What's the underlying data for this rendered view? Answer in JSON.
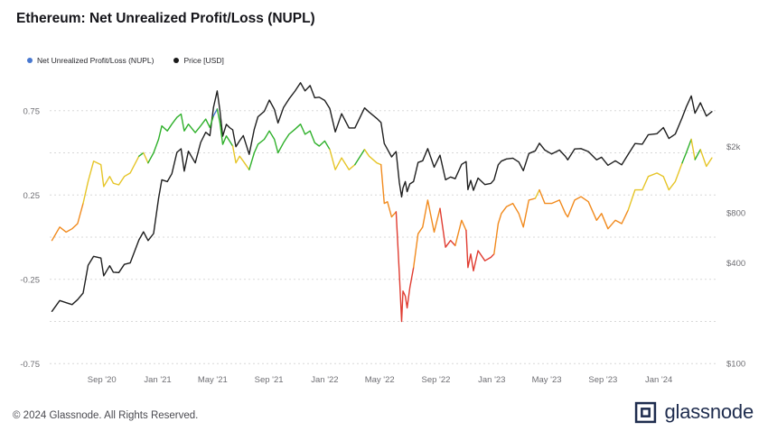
{
  "header": {
    "title": "Ethereum: Net Unrealized Profit/Loss (NUPL)"
  },
  "legend": {
    "items": [
      {
        "label": "Net Unrealized Profit/Loss (NUPL)",
        "color": "#4878d0"
      },
      {
        "label": "Price [USD]",
        "color": "#1a1a1a"
      }
    ]
  },
  "footer": {
    "copyright": "© 2024 Glassnode. All Rights Reserved.",
    "brand": "glassnode"
  },
  "chart_data": {
    "type": "line",
    "title": "Ethereum: Net Unrealized Profit/Loss (NUPL)",
    "time_range": [
      "2020-05-10",
      "2024-05-10"
    ],
    "x_ticks": [
      {
        "date": "2020-09-01",
        "label": "Sep '20"
      },
      {
        "date": "2021-01-01",
        "label": "Jan '21"
      },
      {
        "date": "2021-05-01",
        "label": "May '21"
      },
      {
        "date": "2021-09-01",
        "label": "Sep '21"
      },
      {
        "date": "2022-01-01",
        "label": "Jan '22"
      },
      {
        "date": "2022-05-01",
        "label": "May '22"
      },
      {
        "date": "2022-09-01",
        "label": "Sep '22"
      },
      {
        "date": "2023-01-01",
        "label": "Jan '23"
      },
      {
        "date": "2023-05-01",
        "label": "May '23"
      },
      {
        "date": "2023-09-01",
        "label": "Sep '23"
      },
      {
        "date": "2024-01-01",
        "label": "Jan '24"
      }
    ],
    "nupl_axis": {
      "side": "left",
      "range": [
        -0.8,
        0.95
      ],
      "gridlines": [
        0.75,
        0.5,
        0.25,
        0,
        -0.25,
        -0.5,
        -0.75
      ],
      "grid_style": "dashed",
      "ticks": [
        {
          "value": 0.75,
          "label": "0.75"
        },
        {
          "value": 0.25,
          "label": "0.25"
        },
        {
          "value": -0.25,
          "label": "-0.25"
        },
        {
          "value": -0.75,
          "label": "-0.75"
        }
      ]
    },
    "price_axis": {
      "side": "right",
      "scale": "log",
      "ticks": [
        {
          "value": 2000,
          "label": "$2k"
        },
        {
          "value": 800,
          "label": "$800"
        },
        {
          "value": 400,
          "label": "$400"
        },
        {
          "value": 100,
          "label": "$100"
        }
      ]
    },
    "bands": [
      {
        "max": 0,
        "color": "#e03c31"
      },
      {
        "max": 0.25,
        "color": "#f18a1d"
      },
      {
        "max": 0.5,
        "color": "#e6c528"
      },
      {
        "max": 0.75,
        "color": "#2eb02a"
      },
      {
        "max": 99,
        "color": "#4878d0"
      }
    ],
    "series": [
      {
        "name": "Net Unrealized Profit/Loss (NUPL)",
        "axis": "left",
        "coloring": "by-band"
      },
      {
        "name": "Price [USD]",
        "axis": "right",
        "color": "#1f1f1f"
      }
    ],
    "columns": [
      "date",
      "nupl",
      "price_usd"
    ],
    "points": [
      [
        "2020-05-15",
        -0.02,
        205
      ],
      [
        "2020-06-01",
        0.06,
        238
      ],
      [
        "2020-06-15",
        0.03,
        231
      ],
      [
        "2020-06-28",
        0.05,
        225
      ],
      [
        "2020-07-10",
        0.08,
        241
      ],
      [
        "2020-07-22",
        0.2,
        264
      ],
      [
        "2020-08-02",
        0.33,
        387
      ],
      [
        "2020-08-14",
        0.45,
        438
      ],
      [
        "2020-08-30",
        0.43,
        428
      ],
      [
        "2020-09-05",
        0.3,
        335
      ],
      [
        "2020-09-18",
        0.36,
        385
      ],
      [
        "2020-09-26",
        0.32,
        352
      ],
      [
        "2020-10-08",
        0.31,
        350
      ],
      [
        "2020-10-20",
        0.36,
        392
      ],
      [
        "2020-11-02",
        0.38,
        400
      ],
      [
        "2020-11-21",
        0.48,
        550
      ],
      [
        "2020-12-01",
        0.5,
        615
      ],
      [
        "2020-12-11",
        0.44,
        545
      ],
      [
        "2020-12-23",
        0.5,
        600
      ],
      [
        "2021-01-03",
        0.58,
        975
      ],
      [
        "2021-01-10",
        0.66,
        1260
      ],
      [
        "2021-01-22",
        0.63,
        1230
      ],
      [
        "2021-02-01",
        0.67,
        1370
      ],
      [
        "2021-02-12",
        0.71,
        1840
      ],
      [
        "2021-02-21",
        0.73,
        1935
      ],
      [
        "2021-02-28",
        0.63,
        1420
      ],
      [
        "2021-03-09",
        0.67,
        1870
      ],
      [
        "2021-03-24",
        0.62,
        1590
      ],
      [
        "2021-04-05",
        0.66,
        2110
      ],
      [
        "2021-04-16",
        0.7,
        2430
      ],
      [
        "2021-04-25",
        0.65,
        2320
      ],
      [
        "2021-05-03",
        0.72,
        3430
      ],
      [
        "2021-05-11",
        0.76,
        4300
      ],
      [
        "2021-05-17",
        0.68,
        3280
      ],
      [
        "2021-05-23",
        0.55,
        2300
      ],
      [
        "2021-05-31",
        0.6,
        2710
      ],
      [
        "2021-06-07",
        0.57,
        2590
      ],
      [
        "2021-06-14",
        0.54,
        2510
      ],
      [
        "2021-06-21",
        0.44,
        1990
      ],
      [
        "2021-06-29",
        0.48,
        2160
      ],
      [
        "2021-07-07",
        0.45,
        2320
      ],
      [
        "2021-07-20",
        0.4,
        1790
      ],
      [
        "2021-07-31",
        0.5,
        2530
      ],
      [
        "2021-08-08",
        0.55,
        3010
      ],
      [
        "2021-08-22",
        0.58,
        3240
      ],
      [
        "2021-09-02",
        0.63,
        3790
      ],
      [
        "2021-09-13",
        0.58,
        3330
      ],
      [
        "2021-09-21",
        0.5,
        2760
      ],
      [
        "2021-10-03",
        0.56,
        3420
      ],
      [
        "2021-10-15",
        0.61,
        3850
      ],
      [
        "2021-10-28",
        0.64,
        4290
      ],
      [
        "2021-11-09",
        0.67,
        4810
      ],
      [
        "2021-11-19",
        0.61,
        4300
      ],
      [
        "2021-11-30",
        0.63,
        4630
      ],
      [
        "2021-12-10",
        0.56,
        3910
      ],
      [
        "2021-12-20",
        0.54,
        3940
      ],
      [
        "2022-01-01",
        0.57,
        3770
      ],
      [
        "2022-01-12",
        0.52,
        3370
      ],
      [
        "2022-01-24",
        0.4,
        2440
      ],
      [
        "2022-02-07",
        0.47,
        3140
      ],
      [
        "2022-02-23",
        0.4,
        2580
      ],
      [
        "2022-03-08",
        0.43,
        2580
      ],
      [
        "2022-03-29",
        0.52,
        3400
      ],
      [
        "2022-04-08",
        0.48,
        3210
      ],
      [
        "2022-04-25",
        0.44,
        2940
      ],
      [
        "2022-05-04",
        0.43,
        2780
      ],
      [
        "2022-05-11",
        0.2,
        2080
      ],
      [
        "2022-05-18",
        0.21,
        1920
      ],
      [
        "2022-05-27",
        0.12,
        1730
      ],
      [
        "2022-06-06",
        0.15,
        1860
      ],
      [
        "2022-06-13",
        -0.22,
        1210
      ],
      [
        "2022-06-18",
        -0.5,
        995
      ],
      [
        "2022-06-21",
        -0.32,
        1125
      ],
      [
        "2022-06-26",
        -0.35,
        1230
      ],
      [
        "2022-06-30",
        -0.42,
        1070
      ],
      [
        "2022-07-06",
        -0.3,
        1190
      ],
      [
        "2022-07-14",
        -0.18,
        1230
      ],
      [
        "2022-07-24",
        0.02,
        1600
      ],
      [
        "2022-08-03",
        0.06,
        1640
      ],
      [
        "2022-08-14",
        0.22,
        1940
      ],
      [
        "2022-08-28",
        0.03,
        1500
      ],
      [
        "2022-09-10",
        0.17,
        1770
      ],
      [
        "2022-09-22",
        -0.06,
        1260
      ],
      [
        "2022-10-03",
        -0.02,
        1310
      ],
      [
        "2022-10-13",
        -0.05,
        1280
      ],
      [
        "2022-10-27",
        0.1,
        1560
      ],
      [
        "2022-11-06",
        0.04,
        1620
      ],
      [
        "2022-11-10",
        -0.18,
        1100
      ],
      [
        "2022-11-16",
        -0.1,
        1250
      ],
      [
        "2022-11-22",
        -0.2,
        1090
      ],
      [
        "2022-12-02",
        -0.08,
        1290
      ],
      [
        "2022-12-17",
        -0.14,
        1180
      ],
      [
        "2022-12-30",
        -0.12,
        1200
      ],
      [
        "2023-01-06",
        -0.1,
        1260
      ],
      [
        "2023-01-15",
        0.08,
        1550
      ],
      [
        "2023-01-22",
        0.14,
        1630
      ],
      [
        "2023-02-02",
        0.18,
        1680
      ],
      [
        "2023-02-16",
        0.2,
        1700
      ],
      [
        "2023-03-01",
        0.14,
        1610
      ],
      [
        "2023-03-11",
        0.06,
        1430
      ],
      [
        "2023-03-23",
        0.22,
        1810
      ],
      [
        "2023-04-06",
        0.23,
        1880
      ],
      [
        "2023-04-15",
        0.28,
        2090
      ],
      [
        "2023-04-27",
        0.2,
        1900
      ],
      [
        "2023-05-12",
        0.2,
        1800
      ],
      [
        "2023-05-29",
        0.22,
        1900
      ],
      [
        "2023-06-11",
        0.14,
        1740
      ],
      [
        "2023-06-16",
        0.12,
        1660
      ],
      [
        "2023-07-01",
        0.22,
        1930
      ],
      [
        "2023-07-15",
        0.24,
        1940
      ],
      [
        "2023-07-31",
        0.21,
        1860
      ],
      [
        "2023-08-18",
        0.1,
        1660
      ],
      [
        "2023-08-29",
        0.14,
        1720
      ],
      [
        "2023-09-12",
        0.05,
        1540
      ],
      [
        "2023-09-28",
        0.1,
        1640
      ],
      [
        "2023-10-12",
        0.08,
        1550
      ],
      [
        "2023-10-26",
        0.16,
        1790
      ],
      [
        "2023-11-10",
        0.28,
        2080
      ],
      [
        "2023-11-26",
        0.28,
        2060
      ],
      [
        "2023-12-09",
        0.36,
        2350
      ],
      [
        "2023-12-28",
        0.38,
        2380
      ],
      [
        "2024-01-11",
        0.36,
        2590
      ],
      [
        "2024-01-23",
        0.28,
        2230
      ],
      [
        "2024-02-06",
        0.33,
        2370
      ],
      [
        "2024-02-21",
        0.44,
        2970
      ],
      [
        "2024-03-01",
        0.5,
        3440
      ],
      [
        "2024-03-12",
        0.58,
        4010
      ],
      [
        "2024-03-20",
        0.46,
        3160
      ],
      [
        "2024-04-01",
        0.52,
        3650
      ],
      [
        "2024-04-14",
        0.42,
        3040
      ],
      [
        "2024-04-26",
        0.47,
        3230
      ]
    ]
  }
}
